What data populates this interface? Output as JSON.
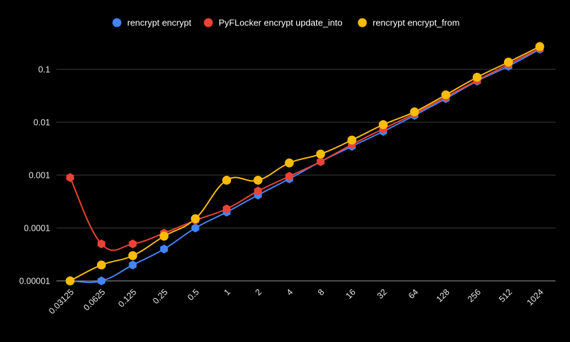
{
  "chart_data": {
    "type": "line",
    "title": "",
    "xlabel": "",
    "ylabel": "",
    "y_scale": "log",
    "ylim": [
      1e-05,
      0.3
    ],
    "grid": true,
    "legend_position": "top",
    "categories": [
      "0.03125",
      "0.0625",
      "0.125",
      "0.25",
      "0.5",
      "1",
      "2",
      "4",
      "8",
      "16",
      "32",
      "64",
      "128",
      "256",
      "512",
      "1024"
    ],
    "y_ticks": [
      {
        "value": 1e-05,
        "label": "0.00001"
      },
      {
        "value": 0.0001,
        "label": "0.0001"
      },
      {
        "value": 0.001,
        "label": "0.001"
      },
      {
        "value": 0.01,
        "label": "0.01"
      },
      {
        "value": 0.1,
        "label": "0.1"
      }
    ],
    "series": [
      {
        "name": "rencrypt encrypt",
        "color": "#4285f4",
        "marker": "hexagon",
        "values": [
          1e-05,
          1e-05,
          2e-05,
          4e-05,
          0.0001,
          0.0002,
          0.00042,
          0.00085,
          0.0018,
          0.0035,
          0.0067,
          0.0135,
          0.028,
          0.06,
          0.115,
          0.24
        ]
      },
      {
        "name": "PyFLocker encrypt update_into",
        "color": "#ea4335",
        "marker": "hexagon",
        "values": [
          0.0009,
          5e-05,
          5e-05,
          8e-05,
          0.00014,
          0.00023,
          0.0005,
          0.00095,
          0.0018,
          0.0038,
          0.0075,
          0.0145,
          0.03,
          0.062,
          0.125,
          0.25
        ]
      },
      {
        "name": "rencrypt encrypt_from",
        "color": "#fbbc04",
        "marker": "circle",
        "values": [
          1e-05,
          2e-05,
          3e-05,
          7e-05,
          0.00015,
          0.0008,
          0.0008,
          0.0017,
          0.0025,
          0.0046,
          0.009,
          0.0157,
          0.033,
          0.071,
          0.137,
          0.27
        ]
      }
    ]
  }
}
